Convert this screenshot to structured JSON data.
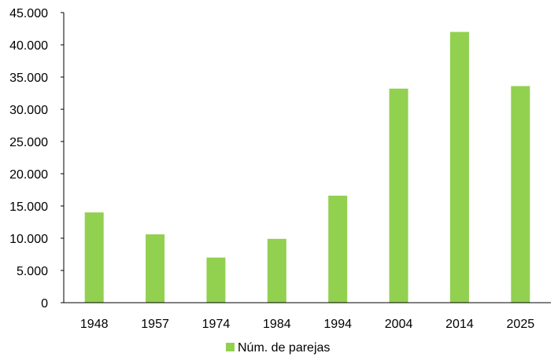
{
  "chart_data": {
    "type": "bar",
    "categories": [
      "1948",
      "1957",
      "1974",
      "1984",
      "1994",
      "2004",
      "2014",
      "2025"
    ],
    "series": [
      {
        "name": "Núm. de parejas",
        "values": [
          14000,
          10600,
          7000,
          9900,
          16600,
          33200,
          42000,
          33600
        ],
        "color": "#92D050"
      }
    ],
    "y_ticks": [
      "0",
      "5.000",
      "10.000",
      "15.000",
      "20.000",
      "25.000",
      "30.000",
      "35.000",
      "40.000",
      "45.000"
    ],
    "ylim": [
      0,
      45000
    ],
    "grid": false,
    "legend": "bottom-center",
    "axis_color": "#000000"
  }
}
